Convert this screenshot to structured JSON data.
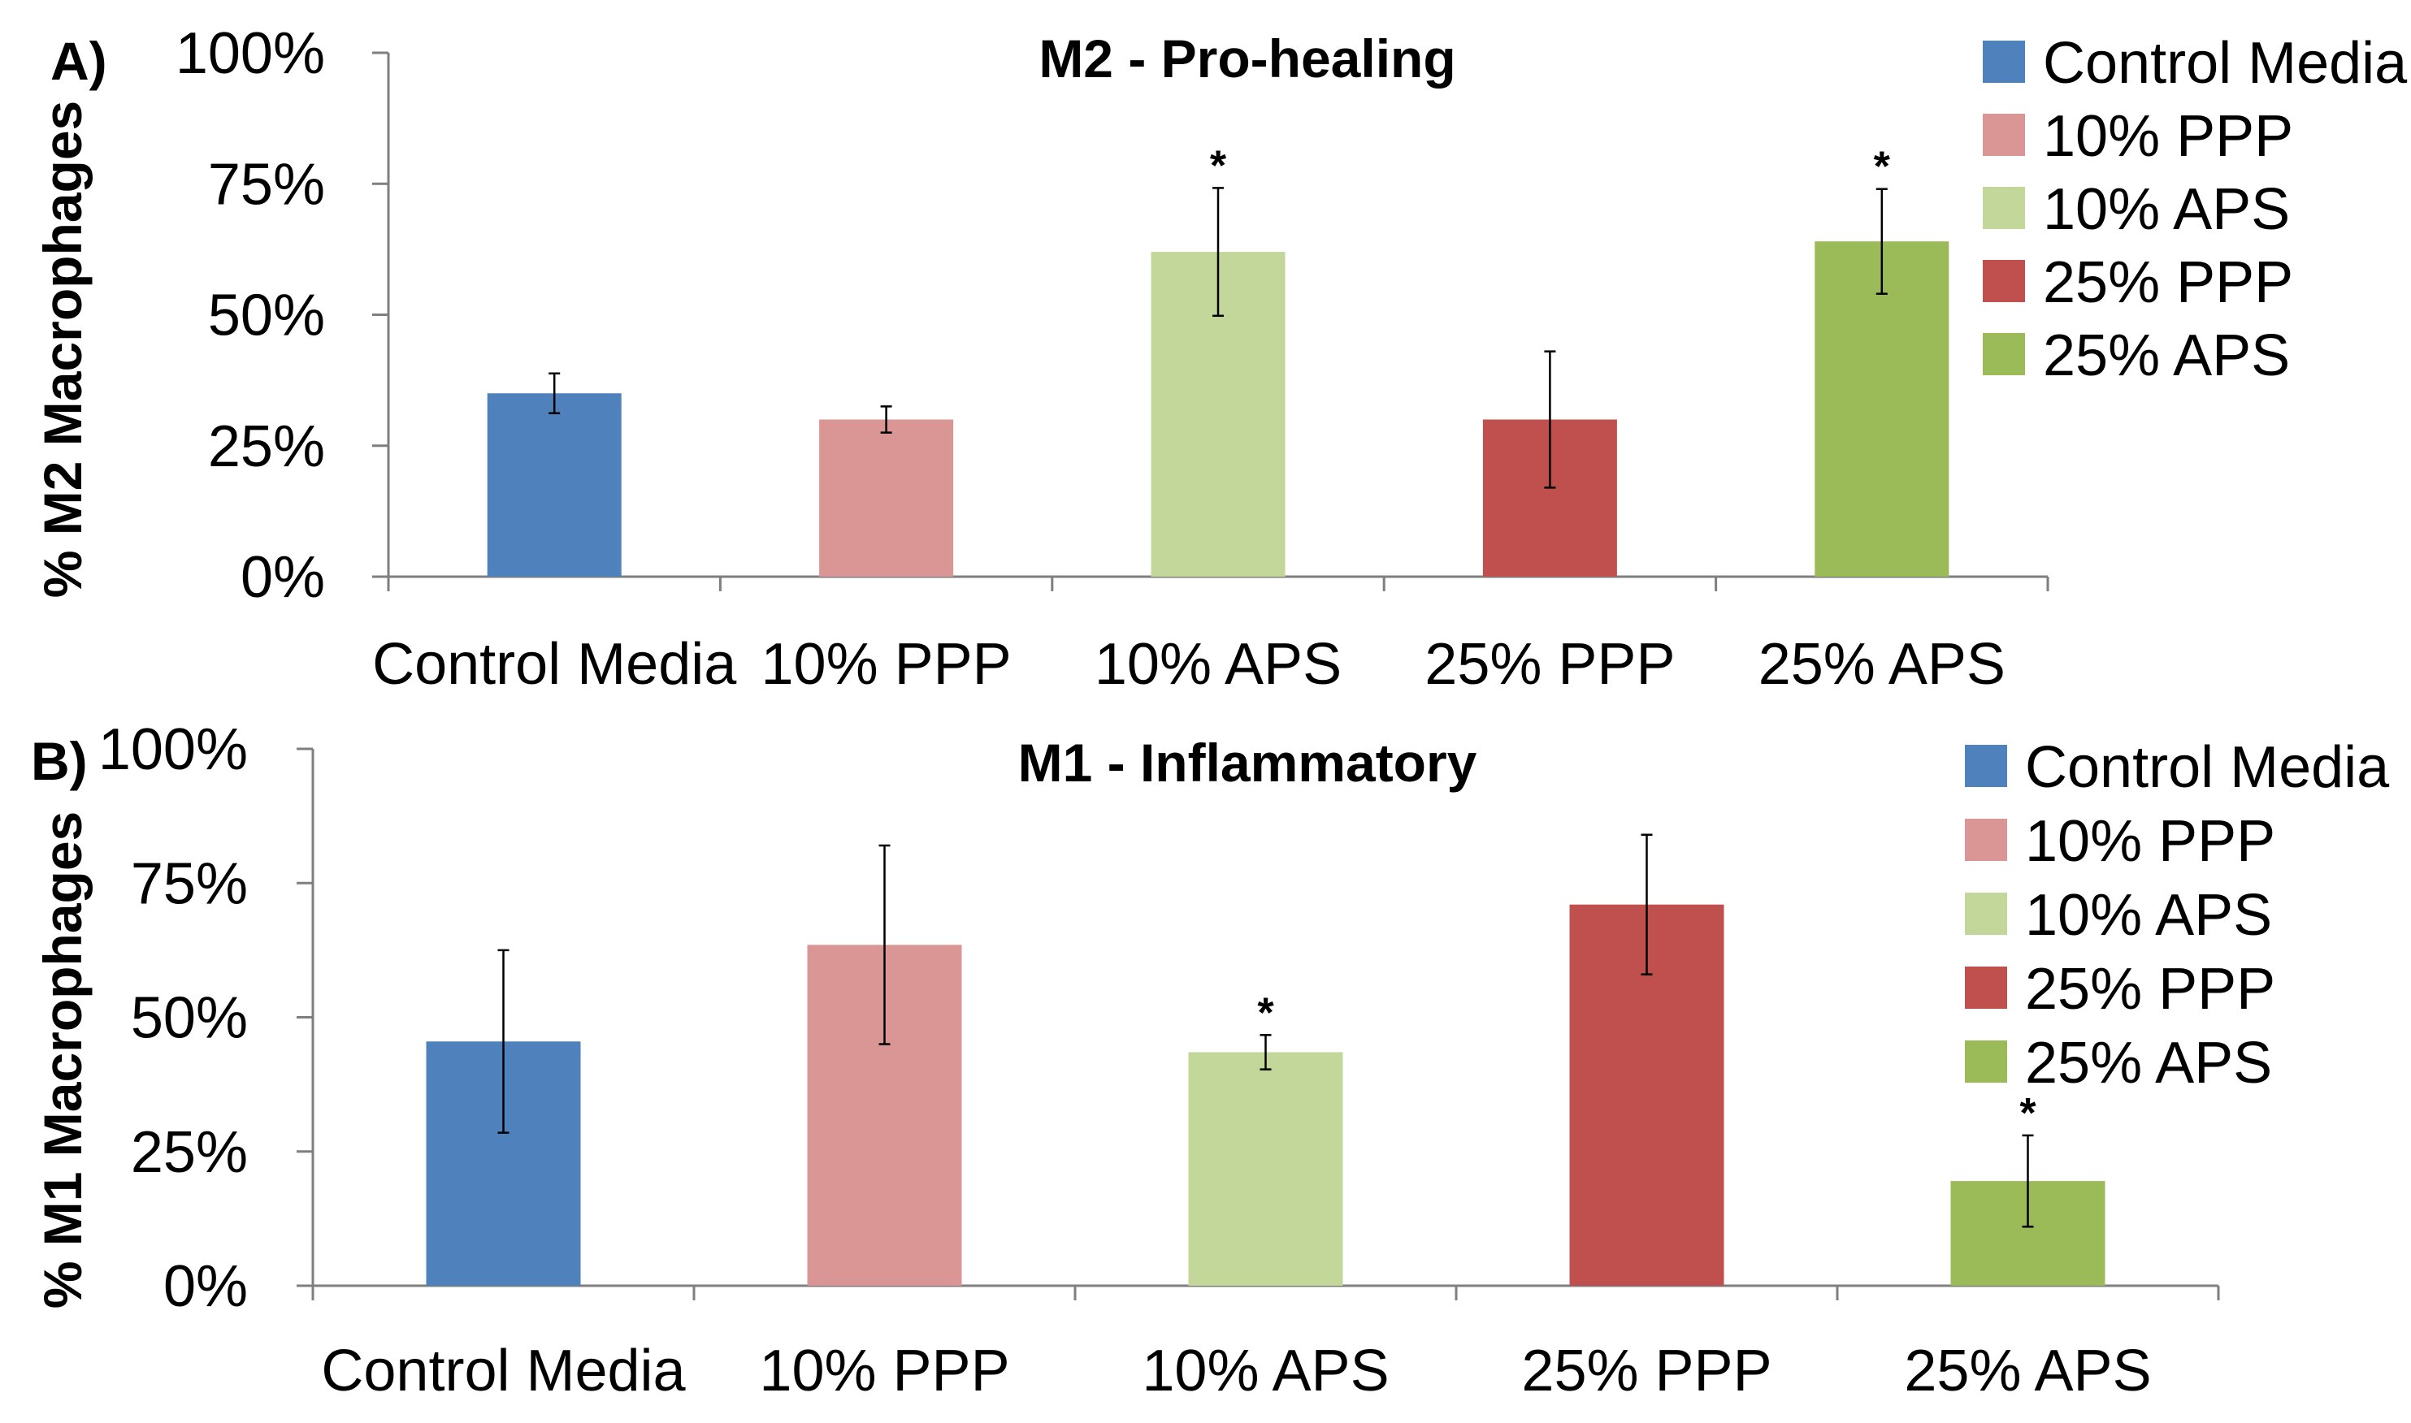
{
  "chart_data": [
    {
      "type": "bar",
      "panel_label": "A)",
      "title": "M2 - Pro-healing",
      "ylabel": "% M2 Macrophages",
      "xlabel": "",
      "ylim": [
        0,
        100
      ],
      "yticks": [
        "0%",
        "25%",
        "50%",
        "75%",
        "100%"
      ],
      "ytick_values": [
        0,
        25,
        50,
        75,
        100
      ],
      "categories": [
        "Control Media",
        "10% PPP",
        "10% APS",
        "25% PPP",
        "25% APS"
      ],
      "values": [
        35,
        30,
        62,
        30,
        64
      ],
      "errors": [
        3.8,
        2.5,
        12.2,
        13,
        10
      ],
      "significant": [
        "",
        "",
        "*",
        "",
        "*"
      ],
      "colors": [
        "#4F81BD",
        "#DA9694",
        "#C4D79B",
        "#C0504D",
        "#9BBB59"
      ],
      "legend": [
        "Control Media",
        "10% PPP",
        "10% APS",
        "25% PPP",
        "25% APS"
      ],
      "legend_position": "top-right"
    },
    {
      "type": "bar",
      "panel_label": "B)",
      "title": "M1 - Inflammatory",
      "ylabel": "% M1 Macrophages",
      "xlabel": "",
      "ylim": [
        0,
        100
      ],
      "yticks": [
        "0%",
        "25%",
        "50%",
        "75%",
        "100%"
      ],
      "ytick_values": [
        0,
        25,
        50,
        75,
        100
      ],
      "categories": [
        "Control Media",
        "10% PPP",
        "10% APS",
        "25% PPP",
        "25% APS"
      ],
      "values": [
        45.5,
        63.5,
        43.5,
        71,
        19.5
      ],
      "errors": [
        17,
        18.5,
        3.2,
        13,
        8.5
      ],
      "significant": [
        "",
        "",
        "*",
        "",
        "*"
      ],
      "colors": [
        "#4F81BD",
        "#DA9694",
        "#C4D79B",
        "#C0504D",
        "#9BBB59"
      ],
      "legend": [
        "Control Media",
        "10% PPP",
        "10% APS",
        "25% PPP",
        "25% APS"
      ],
      "legend_position": "top-right"
    }
  ]
}
